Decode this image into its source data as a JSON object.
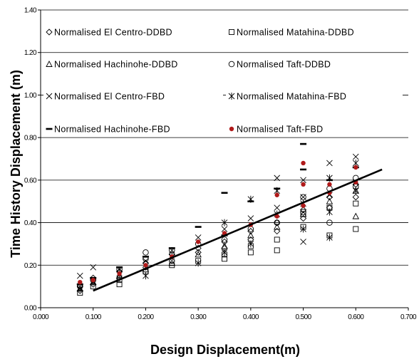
{
  "chart_data": {
    "type": "scatter",
    "xlabel": "Design Displacement(m)",
    "ylabel": "Time History Displacement (m)",
    "xlim": [
      0,
      0.7
    ],
    "ylim": [
      0,
      1.4
    ],
    "x_ticks": [
      "0.000",
      "0.100",
      "0.200",
      "0.300",
      "0.400",
      "0.500",
      "0.600",
      "0.700"
    ],
    "y_ticks": [
      "0.00",
      "0.20",
      "0.40",
      "0.60",
      "0.80",
      "1.00",
      "1.20",
      "1.40"
    ],
    "grid": "horizontal",
    "legend_position": "top, inside plot, two columns",
    "series": [
      {
        "name": "Normalised El Centro-DDBD",
        "marker": "diamond-open",
        "points": [
          [
            0.075,
            0.08
          ],
          [
            0.075,
            0.1
          ],
          [
            0.1,
            0.11
          ],
          [
            0.1,
            0.14
          ],
          [
            0.15,
            0.14
          ],
          [
            0.15,
            0.17
          ],
          [
            0.2,
            0.19
          ],
          [
            0.2,
            0.21
          ],
          [
            0.25,
            0.22
          ],
          [
            0.25,
            0.25
          ],
          [
            0.3,
            0.26
          ],
          [
            0.3,
            0.28
          ],
          [
            0.35,
            0.28
          ],
          [
            0.35,
            0.31
          ],
          [
            0.4,
            0.32
          ],
          [
            0.4,
            0.36
          ],
          [
            0.45,
            0.36
          ],
          [
            0.45,
            0.4
          ],
          [
            0.5,
            0.42
          ],
          [
            0.5,
            0.46
          ],
          [
            0.55,
            0.47
          ],
          [
            0.55,
            0.52
          ],
          [
            0.6,
            0.52
          ],
          [
            0.6,
            0.58
          ]
        ]
      },
      {
        "name": "Normalised Matahina-DDBD",
        "marker": "square-open",
        "points": [
          [
            0.075,
            0.07
          ],
          [
            0.1,
            0.1
          ],
          [
            0.15,
            0.11
          ],
          [
            0.15,
            0.13
          ],
          [
            0.2,
            0.17
          ],
          [
            0.25,
            0.2
          ],
          [
            0.3,
            0.22
          ],
          [
            0.35,
            0.23
          ],
          [
            0.35,
            0.25
          ],
          [
            0.4,
            0.26
          ],
          [
            0.4,
            0.29
          ],
          [
            0.45,
            0.27
          ],
          [
            0.45,
            0.32
          ],
          [
            0.5,
            0.38
          ],
          [
            0.5,
            0.44
          ],
          [
            0.55,
            0.34
          ],
          [
            0.55,
            0.47
          ],
          [
            0.6,
            0.37
          ],
          [
            0.6,
            0.49
          ]
        ]
      },
      {
        "name": "Normalised Hachinohe-DDBD",
        "marker": "triangle-open",
        "points": [
          [
            0.075,
            0.09
          ],
          [
            0.1,
            0.12
          ],
          [
            0.15,
            0.15
          ],
          [
            0.2,
            0.18
          ],
          [
            0.25,
            0.21
          ],
          [
            0.3,
            0.25
          ],
          [
            0.35,
            0.29
          ],
          [
            0.4,
            0.34
          ],
          [
            0.45,
            0.38
          ],
          [
            0.5,
            0.44
          ],
          [
            0.55,
            0.5
          ],
          [
            0.6,
            0.43
          ],
          [
            0.6,
            0.55
          ]
        ]
      },
      {
        "name": "Normalised Taft-DDBD",
        "marker": "circle-open",
        "points": [
          [
            0.075,
            0.1
          ],
          [
            0.1,
            0.13
          ],
          [
            0.15,
            0.18
          ],
          [
            0.2,
            0.23
          ],
          [
            0.2,
            0.26
          ],
          [
            0.25,
            0.27
          ],
          [
            0.3,
            0.3
          ],
          [
            0.35,
            0.32
          ],
          [
            0.4,
            0.37
          ],
          [
            0.45,
            0.4
          ],
          [
            0.5,
            0.45
          ],
          [
            0.5,
            0.52
          ],
          [
            0.55,
            0.4
          ],
          [
            0.55,
            0.56
          ],
          [
            0.6,
            0.57
          ],
          [
            0.6,
            0.61
          ]
        ]
      },
      {
        "name": "Normalised El Centro-FBD",
        "marker": "x",
        "points": [
          [
            0.075,
            0.15
          ],
          [
            0.1,
            0.19
          ],
          [
            0.15,
            0.18
          ],
          [
            0.2,
            0.22
          ],
          [
            0.25,
            0.27
          ],
          [
            0.3,
            0.33
          ],
          [
            0.35,
            0.37
          ],
          [
            0.4,
            0.42
          ],
          [
            0.45,
            0.47
          ],
          [
            0.45,
            0.61
          ],
          [
            0.5,
            0.31
          ],
          [
            0.5,
            0.52
          ],
          [
            0.5,
            0.6
          ],
          [
            0.55,
            0.53
          ],
          [
            0.55,
            0.68
          ],
          [
            0.6,
            0.59
          ],
          [
            0.6,
            0.71
          ]
        ]
      },
      {
        "name": "Normalised Matahina-FBD",
        "marker": "asterisk",
        "points": [
          [
            0.075,
            0.09
          ],
          [
            0.1,
            0.12
          ],
          [
            0.15,
            0.16
          ],
          [
            0.2,
            0.15
          ],
          [
            0.25,
            0.24
          ],
          [
            0.3,
            0.21
          ],
          [
            0.35,
            0.26
          ],
          [
            0.35,
            0.4
          ],
          [
            0.4,
            0.3
          ],
          [
            0.4,
            0.51
          ],
          [
            0.45,
            0.44
          ],
          [
            0.45,
            0.55
          ],
          [
            0.5,
            0.37
          ],
          [
            0.5,
            0.49
          ],
          [
            0.55,
            0.33
          ],
          [
            0.55,
            0.45
          ],
          [
            0.55,
            0.61
          ],
          [
            0.6,
            0.55
          ],
          [
            0.6,
            0.68
          ]
        ]
      },
      {
        "name": "Normalised Hachinohe-FBD",
        "marker": "dash",
        "points": [
          [
            0.075,
            0.11
          ],
          [
            0.1,
            0.14
          ],
          [
            0.15,
            0.19
          ],
          [
            0.2,
            0.24
          ],
          [
            0.25,
            0.28
          ],
          [
            0.3,
            0.38
          ],
          [
            0.35,
            0.34
          ],
          [
            0.35,
            0.54
          ],
          [
            0.4,
            0.5
          ],
          [
            0.45,
            0.56
          ],
          [
            0.5,
            0.65
          ],
          [
            0.5,
            0.77
          ],
          [
            0.55,
            0.6
          ],
          [
            0.6,
            0.66
          ]
        ]
      },
      {
        "name": "Normalised Taft-FBD",
        "marker": "dot-red",
        "points": [
          [
            0.075,
            0.12
          ],
          [
            0.1,
            0.13
          ],
          [
            0.15,
            0.16
          ],
          [
            0.2,
            0.2
          ],
          [
            0.25,
            0.24
          ],
          [
            0.3,
            0.31
          ],
          [
            0.35,
            0.35
          ],
          [
            0.4,
            0.39
          ],
          [
            0.45,
            0.43
          ],
          [
            0.45,
            0.53
          ],
          [
            0.5,
            0.48
          ],
          [
            0.5,
            0.58
          ],
          [
            0.5,
            0.68
          ],
          [
            0.55,
            0.54
          ],
          [
            0.55,
            0.58
          ],
          [
            0.6,
            0.59
          ],
          [
            0.6,
            0.66
          ]
        ]
      }
    ],
    "trendline": {
      "x": [
        0.1,
        0.65
      ],
      "y": [
        0.08,
        0.65
      ]
    }
  }
}
